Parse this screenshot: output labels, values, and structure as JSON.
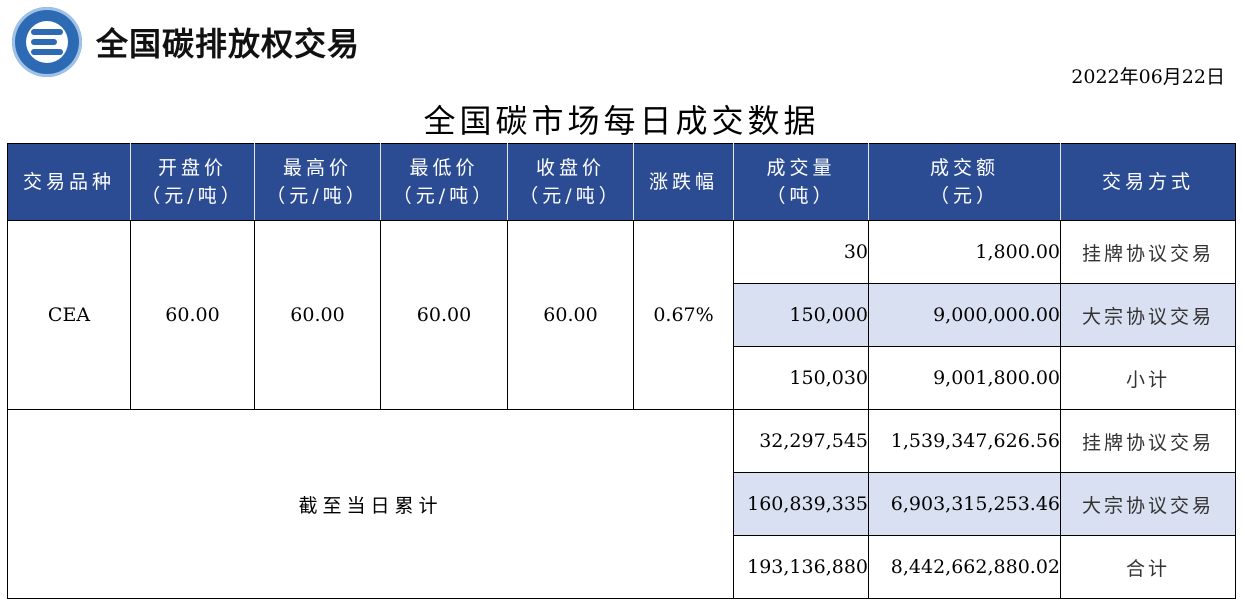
{
  "header": {
    "brand_name": "全国碳排放权交易",
    "logo_icon": "carbon-exchange-logo",
    "date": "2022年06月22日",
    "title": "全国碳市场每日成交数据"
  },
  "table": {
    "columns": [
      {
        "line1": "交易品种",
        "line2": ""
      },
      {
        "line1": "开盘价",
        "line2": "（元/吨）"
      },
      {
        "line1": "最高价",
        "line2": "（元/吨）"
      },
      {
        "line1": "最低价",
        "line2": "（元/吨）"
      },
      {
        "line1": "收盘价",
        "line2": "（元/吨）"
      },
      {
        "line1": "涨跌幅",
        "line2": ""
      },
      {
        "line1": "成交量",
        "line2": "（吨）"
      },
      {
        "line1": "成交额",
        "line2": "（元）"
      },
      {
        "line1": "交易方式",
        "line2": ""
      }
    ],
    "daily": {
      "product": "CEA",
      "open": "60.00",
      "high": "60.00",
      "low": "60.00",
      "close": "60.00",
      "change": "0.67%",
      "rows": [
        {
          "volume": "30",
          "amount": "1,800.00",
          "mode": "挂牌协议交易"
        },
        {
          "volume": "150,000",
          "amount": "9,000,000.00",
          "mode": "大宗协议交易"
        },
        {
          "volume": "150,030",
          "amount": "9,001,800.00",
          "mode": "小计"
        }
      ]
    },
    "cumulative": {
      "label": "截至当日累计",
      "rows": [
        {
          "volume": "32,297,545",
          "amount": "1,539,347,626.56",
          "mode": "挂牌协议交易"
        },
        {
          "volume": "160,839,335",
          "amount": "6,903,315,253.46",
          "mode": "大宗协议交易"
        },
        {
          "volume": "193,136,880",
          "amount": "8,442,662,880.02",
          "mode": "合计"
        }
      ]
    }
  },
  "colors": {
    "header_bg": "#2b4c92",
    "header_text": "#ffffff",
    "shade_row": "#d9e0f1",
    "logo_blue": "#2c6bb3"
  }
}
